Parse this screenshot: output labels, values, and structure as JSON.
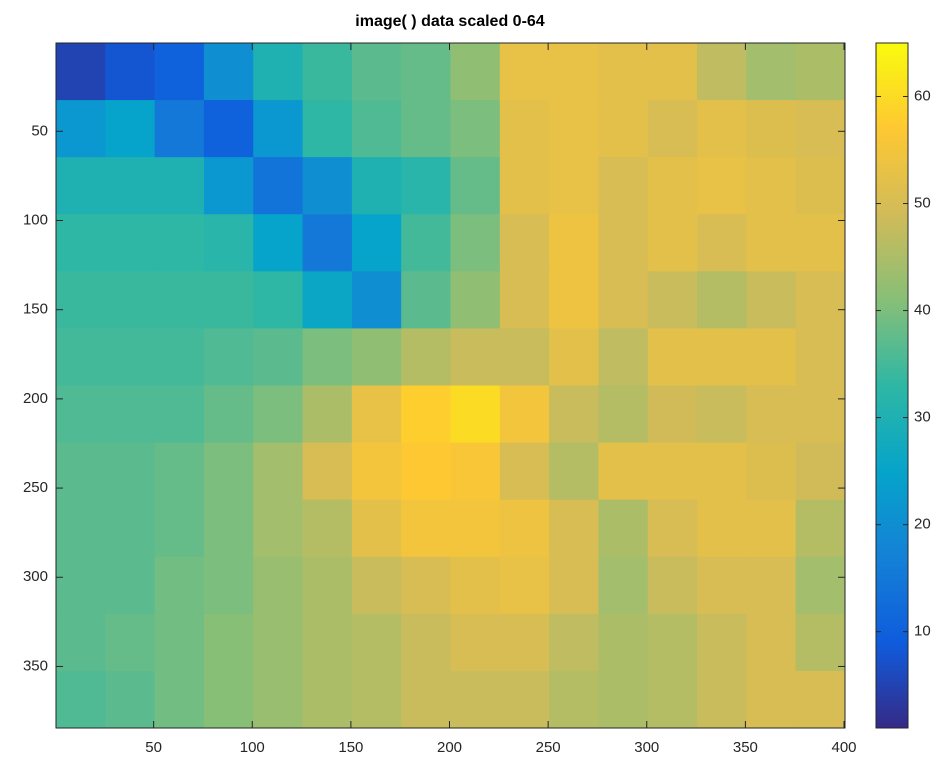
{
  "chart_data": {
    "type": "image",
    "title": "image( ) data scaled 0-64",
    "xlim": [
      0.5,
      400.5
    ],
    "ylim": [
      0.5,
      384.5
    ],
    "y_reversed": true,
    "xticks": [
      50,
      100,
      150,
      200,
      250,
      300,
      350,
      400
    ],
    "yticks": [
      50,
      100,
      150,
      200,
      250,
      300,
      350
    ],
    "clim": [
      1,
      65
    ],
    "cticks": [
      10,
      20,
      30,
      40,
      50,
      60
    ],
    "colormap": [
      "#352a87",
      "#0f5cdd",
      "#1481d6",
      "#06a4ca",
      "#2eb7a4",
      "#87bf77",
      "#d1bb59",
      "#fec832",
      "#f9fb0e"
    ],
    "z": [
      [
        5,
        8,
        10,
        20,
        30,
        34,
        37,
        38,
        42,
        53,
        53,
        52,
        52,
        47,
        44,
        45
      ],
      [
        22,
        25,
        15,
        10,
        22,
        33,
        36,
        38,
        40,
        52,
        53,
        52,
        50,
        52,
        51,
        50
      ],
      [
        30,
        30,
        30,
        22,
        14,
        20,
        30,
        32,
        38,
        52,
        53,
        50,
        52,
        53,
        52,
        51
      ],
      [
        33,
        33,
        33,
        32,
        25,
        15,
        25,
        35,
        40,
        50,
        54,
        50,
        52,
        50,
        52,
        52
      ],
      [
        34,
        34,
        34,
        34,
        33,
        26,
        20,
        37,
        42,
        50,
        54,
        50,
        48,
        46,
        48,
        50
      ],
      [
        35,
        35,
        35,
        36,
        37,
        40,
        42,
        46,
        48,
        48,
        52,
        47,
        52,
        52,
        52,
        50
      ],
      [
        36,
        36,
        36,
        38,
        40,
        45,
        53,
        58,
        60,
        55,
        48,
        46,
        49,
        48,
        50,
        50
      ],
      [
        37,
        37,
        38,
        40,
        44,
        50,
        55,
        57,
        56,
        50,
        46,
        52,
        52,
        52,
        51,
        49
      ],
      [
        37,
        37,
        38,
        40,
        44,
        46,
        52,
        55,
        55,
        54,
        50,
        45,
        50,
        52,
        52,
        46
      ],
      [
        37,
        37,
        39,
        40,
        43,
        45,
        48,
        50,
        52,
        53,
        50,
        44,
        48,
        50,
        50,
        44
      ],
      [
        37,
        38,
        39,
        41,
        43,
        45,
        46,
        48,
        50,
        50,
        47,
        45,
        46,
        48,
        50,
        46
      ],
      [
        36,
        37,
        39,
        41,
        43,
        45,
        46,
        48,
        48,
        48,
        46,
        45,
        46,
        48,
        50,
        50
      ]
    ]
  }
}
